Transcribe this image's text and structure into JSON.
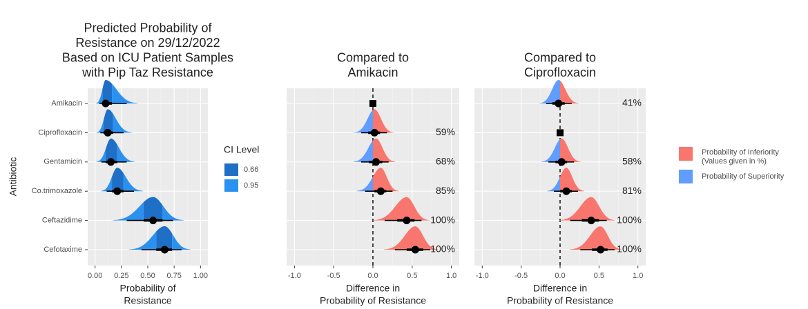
{
  "chart_data": [
    {
      "type": "halfeye",
      "title": [
        "Predicted Probability of",
        "Resistance on 29/12/2022",
        "Based on ICU Patient Samples",
        "with Pip Taz Resistance"
      ],
      "xlabel": [
        "Probability of",
        "Resistance"
      ],
      "ylabel": "Antibiotic",
      "categories": [
        "Amikacin",
        "Ciprofloxacin",
        "Gentamicin",
        "Co.trimoxazole",
        "Ceftazidime",
        "Cefotaxime"
      ],
      "median": [
        0.1,
        0.12,
        0.15,
        0.21,
        0.55,
        0.66
      ],
      "lower_95": [
        0.04,
        0.05,
        0.06,
        0.11,
        0.3,
        0.44
      ],
      "upper_95": [
        0.3,
        0.27,
        0.3,
        0.37,
        0.74,
        0.82
      ],
      "lower_66": [
        0.07,
        0.08,
        0.1,
        0.16,
        0.46,
        0.58
      ],
      "upper_66": [
        0.16,
        0.17,
        0.21,
        0.27,
        0.64,
        0.73
      ],
      "xlim": [
        -0.07,
        1.07
      ],
      "xticks": [
        {
          "value": 0,
          "label": "0.00"
        },
        0.25,
        {
          "value": 0.5,
          "label": "0.50"
        },
        0.75,
        {
          "value": 1,
          "label": "1.00"
        }
      ],
      "grid": true,
      "legend_title": "CI Level",
      "legend": [
        {
          "label": 0.66,
          "color": "#1f6fc6"
        },
        {
          "label": 0.95,
          "color": "#2b91f0"
        }
      ]
    },
    {
      "type": "comparison",
      "title": [
        "Compared to",
        "Amikacin"
      ],
      "xlabel": [
        "Difference in",
        "Probability of Resistance"
      ],
      "median": [
        0,
        0.02,
        0.04,
        0.1,
        0.43,
        0.54
      ],
      "lower_95": [
        null,
        -0.15,
        -0.15,
        -0.1,
        0.15,
        0.28
      ],
      "upper_95": [
        null,
        0.18,
        0.2,
        0.25,
        0.62,
        0.73
      ],
      "lower_66": [
        null,
        -0.06,
        -0.05,
        0.02,
        0.31,
        0.43
      ],
      "upper_66": [
        null,
        0.09,
        0.12,
        0.17,
        0.53,
        0.64
      ],
      "values": [
        null,
        59,
        68,
        85,
        100,
        100
      ],
      "value_labels": [
        null,
        "59%",
        "68%",
        "85%",
        "100%",
        "100%"
      ],
      "xlim": [
        -1.1,
        1.1
      ],
      "xticks": [
        {
          "value": -1,
          "label": "-1.0"
        },
        -0.5,
        {
          "value": 0,
          "label": "0.0"
        },
        0.5,
        {
          "value": 1,
          "label": "1.0"
        }
      ],
      "grid": true
    },
    {
      "type": "comparison",
      "title": [
        "Compared to",
        "Ciprofloxacin"
      ],
      "xlabel": [
        "Difference in",
        "Probability of Resistance"
      ],
      "median": [
        -0.02,
        0,
        0.02,
        0.08,
        0.4,
        0.52
      ],
      "lower_95": [
        -0.18,
        null,
        -0.15,
        -0.08,
        0.13,
        0.26
      ],
      "upper_95": [
        0.15,
        null,
        0.18,
        0.23,
        0.6,
        0.7
      ],
      "lower_66": [
        -0.1,
        null,
        -0.06,
        0.0,
        0.28,
        0.41
      ],
      "upper_66": [
        0.06,
        null,
        0.09,
        0.15,
        0.5,
        0.61
      ],
      "values": [
        41,
        null,
        58,
        81,
        100,
        100
      ],
      "value_labels": [
        "41%",
        null,
        "58%",
        "81%",
        "100%",
        "100%"
      ],
      "xlim": [
        -1.1,
        1.1
      ],
      "xticks": [
        {
          "value": -1,
          "label": "-1.0"
        },
        -0.5,
        {
          "value": 0,
          "label": "0.0"
        },
        0.5,
        {
          "value": 1,
          "label": "1.0"
        }
      ],
      "grid": true,
      "legend": [
        {
          "label": [
            "Probability of Inferiority",
            "(Values given in %)"
          ],
          "color": "#f8766d"
        },
        {
          "label": [
            "Probability of Superiority"
          ],
          "color": "#619cff"
        }
      ]
    }
  ]
}
